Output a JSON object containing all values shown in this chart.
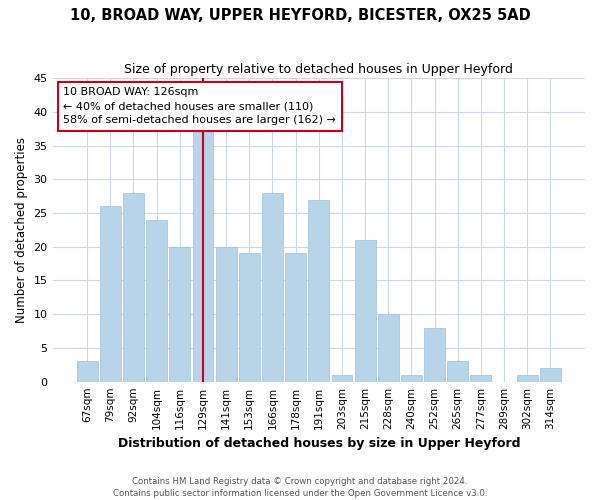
{
  "title": "10, BROAD WAY, UPPER HEYFORD, BICESTER, OX25 5AD",
  "subtitle": "Size of property relative to detached houses in Upper Heyford",
  "xlabel": "Distribution of detached houses by size in Upper Heyford",
  "ylabel": "Number of detached properties",
  "categories": [
    "67sqm",
    "79sqm",
    "92sqm",
    "104sqm",
    "116sqm",
    "129sqm",
    "141sqm",
    "153sqm",
    "166sqm",
    "178sqm",
    "191sqm",
    "203sqm",
    "215sqm",
    "228sqm",
    "240sqm",
    "252sqm",
    "265sqm",
    "277sqm",
    "289sqm",
    "302sqm",
    "314sqm"
  ],
  "values": [
    3,
    26,
    28,
    24,
    20,
    37,
    20,
    19,
    28,
    19,
    27,
    1,
    21,
    10,
    1,
    8,
    3,
    1,
    0,
    1,
    2
  ],
  "bar_color": "#b8d4e8",
  "bar_edge_color": "#a0c0d8",
  "highlight_color": "#c8001a",
  "highlight_index": 5,
  "ylim": [
    0,
    45
  ],
  "yticks": [
    0,
    5,
    10,
    15,
    20,
    25,
    30,
    35,
    40,
    45
  ],
  "annotation_title": "10 BROAD WAY: 126sqm",
  "annotation_line1": "← 40% of detached houses are smaller (110)",
  "annotation_line2": "58% of semi-detached houses are larger (162) →",
  "footer1": "Contains HM Land Registry data © Crown copyright and database right 2024.",
  "footer2": "Contains public sector information licensed under the Open Government Licence v3.0.",
  "background_color": "#ffffff",
  "grid_color": "#c8d8e8"
}
